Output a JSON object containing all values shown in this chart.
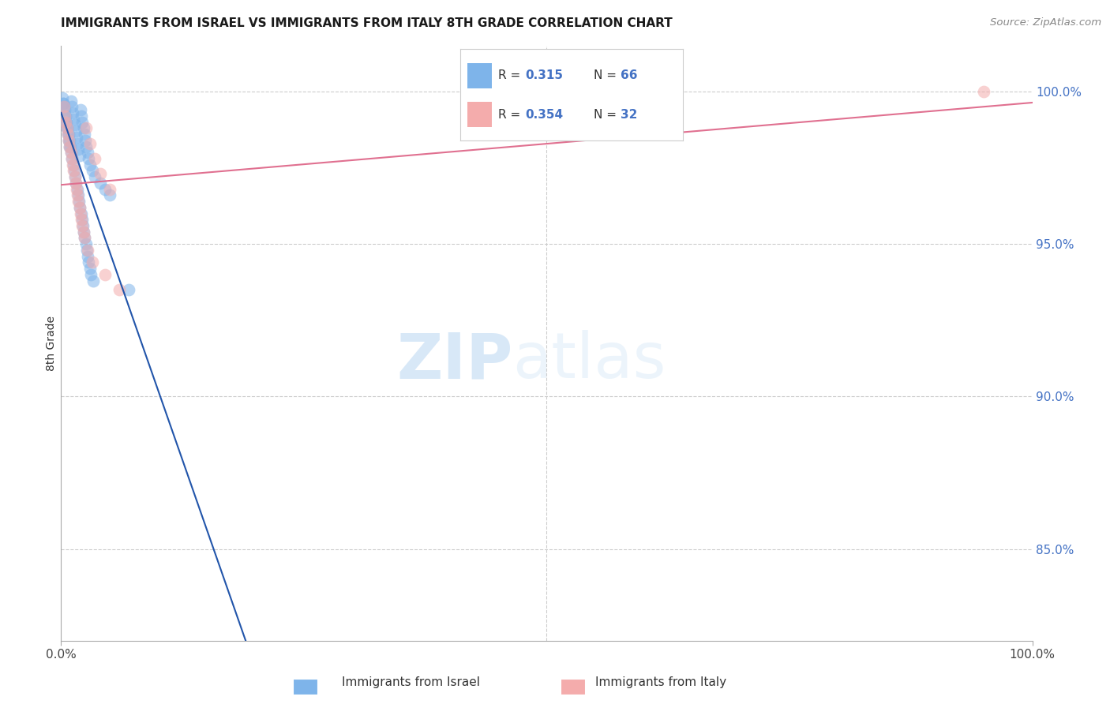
{
  "title": "IMMIGRANTS FROM ISRAEL VS IMMIGRANTS FROM ITALY 8TH GRADE CORRELATION CHART",
  "source": "Source: ZipAtlas.com",
  "ylabel": "8th Grade",
  "xlim": [
    0.0,
    100.0
  ],
  "ylim": [
    82.0,
    101.5
  ],
  "ytick_positions": [
    85.0,
    90.0,
    95.0,
    100.0
  ],
  "xtick_positions": [
    0.0,
    100.0
  ],
  "color_israel": "#7EB4EA",
  "color_italy": "#F4ACAC",
  "color_trendline_israel": "#2255AA",
  "color_trendline_italy": "#E07090",
  "israel_x": [
    0.3,
    0.4,
    0.5,
    0.6,
    0.7,
    0.8,
    0.9,
    1.0,
    1.1,
    1.2,
    1.3,
    1.4,
    1.5,
    1.6,
    1.7,
    1.8,
    1.9,
    2.0,
    2.1,
    2.2,
    2.3,
    2.4,
    2.5,
    2.6,
    2.7,
    2.8,
    3.0,
    3.2,
    3.5,
    4.0,
    4.5,
    5.0,
    0.2,
    0.35,
    0.45,
    0.55,
    0.65,
    0.75,
    0.85,
    0.95,
    1.05,
    1.15,
    1.25,
    1.35,
    1.45,
    1.55,
    1.65,
    1.75,
    1.85,
    1.95,
    2.05,
    2.15,
    2.25,
    2.35,
    2.45,
    2.55,
    2.65,
    2.75,
    2.85,
    2.95,
    3.1,
    3.3,
    7.0,
    0.25,
    0.15
  ],
  "israel_y": [
    99.5,
    99.2,
    99.0,
    98.8,
    98.6,
    98.4,
    98.2,
    99.7,
    99.5,
    99.3,
    99.1,
    98.9,
    98.7,
    98.5,
    98.3,
    98.1,
    97.9,
    99.4,
    99.2,
    99.0,
    98.8,
    98.6,
    98.4,
    98.2,
    98.0,
    97.8,
    97.6,
    97.4,
    97.2,
    97.0,
    96.8,
    96.6,
    99.6,
    99.4,
    99.2,
    99.0,
    98.8,
    98.6,
    98.4,
    98.2,
    98.0,
    97.8,
    97.6,
    97.4,
    97.2,
    97.0,
    96.8,
    96.6,
    96.4,
    96.2,
    96.0,
    95.8,
    95.6,
    95.4,
    95.2,
    95.0,
    94.8,
    94.6,
    94.4,
    94.2,
    94.0,
    93.8,
    93.5,
    99.6,
    99.8
  ],
  "italy_x": [
    0.5,
    0.7,
    0.9,
    1.1,
    1.3,
    1.5,
    1.7,
    1.9,
    2.1,
    2.3,
    2.6,
    3.0,
    3.5,
    4.0,
    5.0,
    0.4,
    0.6,
    0.8,
    1.0,
    1.2,
    1.4,
    1.6,
    1.8,
    2.0,
    2.2,
    2.4,
    2.7,
    3.2,
    4.5,
    6.0,
    0.3,
    95.0
  ],
  "italy_y": [
    99.0,
    98.6,
    98.2,
    97.8,
    97.4,
    97.0,
    96.6,
    96.2,
    95.8,
    95.4,
    98.8,
    98.3,
    97.8,
    97.3,
    96.8,
    99.2,
    98.8,
    98.4,
    98.0,
    97.6,
    97.2,
    96.8,
    96.4,
    96.0,
    95.6,
    95.2,
    94.8,
    94.4,
    94.0,
    93.5,
    99.5,
    100.0
  ]
}
